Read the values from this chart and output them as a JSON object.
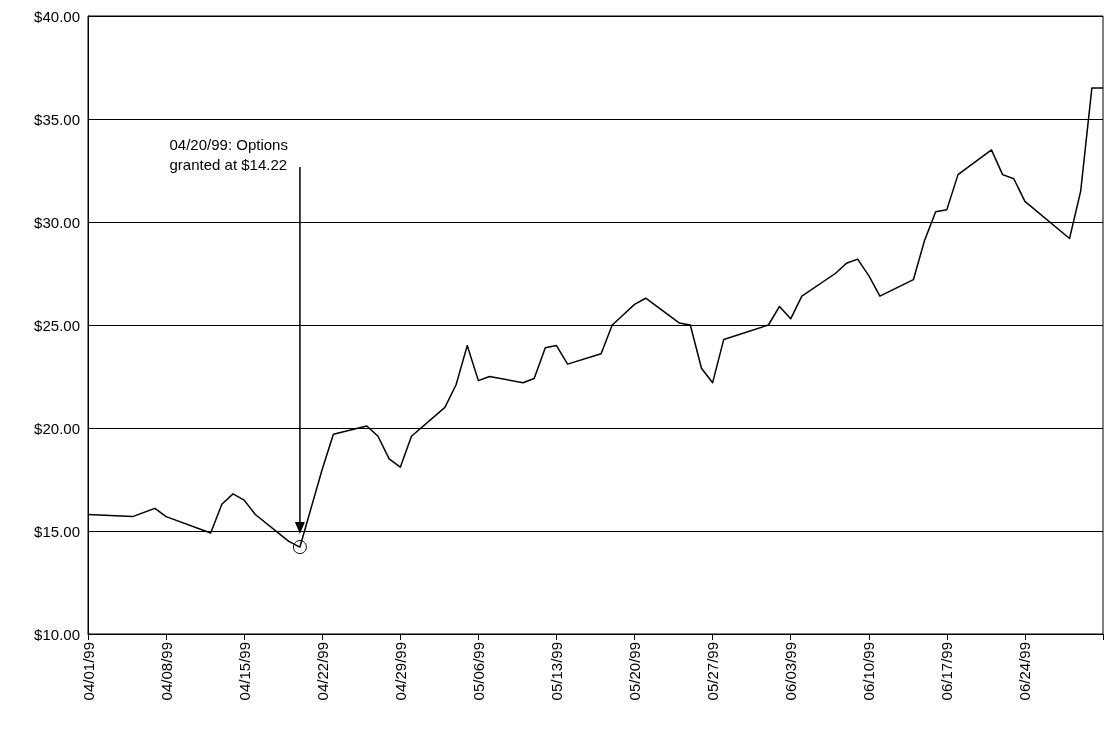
{
  "chart_data": {
    "type": "line",
    "x": [
      "1999-04-01",
      "1999-04-05",
      "1999-04-07",
      "1999-04-08",
      "1999-04-12",
      "1999-04-13",
      "1999-04-14",
      "1999-04-15",
      "1999-04-16",
      "1999-04-19",
      "1999-04-20",
      "1999-04-22",
      "1999-04-23",
      "1999-04-26",
      "1999-04-27",
      "1999-04-28",
      "1999-04-29",
      "1999-04-30",
      "1999-05-03",
      "1999-05-04",
      "1999-05-05",
      "1999-05-06",
      "1999-05-07",
      "1999-05-10",
      "1999-05-11",
      "1999-05-12",
      "1999-05-13",
      "1999-05-14",
      "1999-05-17",
      "1999-05-18",
      "1999-05-19",
      "1999-05-20",
      "1999-05-21",
      "1999-05-24",
      "1999-05-25",
      "1999-05-26",
      "1999-05-27",
      "1999-05-28",
      "1999-06-01",
      "1999-06-02",
      "1999-06-03",
      "1999-06-04",
      "1999-06-07",
      "1999-06-08",
      "1999-06-09",
      "1999-06-10",
      "1999-06-11",
      "1999-06-14",
      "1999-06-15",
      "1999-06-16",
      "1999-06-17",
      "1999-06-18",
      "1999-06-21",
      "1999-06-22",
      "1999-06-23",
      "1999-06-24",
      "1999-06-28",
      "1999-06-29",
      "1999-06-30",
      "1999-07-01"
    ],
    "values": [
      15.8,
      15.7,
      16.1,
      15.7,
      14.9,
      16.3,
      16.8,
      16.5,
      15.8,
      14.5,
      14.22,
      18.0,
      19.7,
      20.1,
      19.6,
      18.5,
      18.1,
      19.6,
      21.0,
      22.1,
      24.0,
      22.3,
      22.5,
      22.2,
      22.4,
      23.9,
      24.0,
      23.1,
      23.6,
      25.0,
      25.5,
      26.0,
      26.3,
      25.1,
      25.0,
      22.9,
      22.2,
      24.3,
      25.0,
      25.9,
      25.3,
      26.4,
      27.5,
      28.0,
      28.2,
      27.4,
      26.4,
      27.2,
      29.1,
      30.5,
      30.6,
      32.3,
      33.5,
      32.3,
      32.1,
      31.0,
      29.2,
      31.5,
      36.5,
      36.5
    ],
    "color": "#000000",
    "marker": "none",
    "line_style": "solid",
    "xlim": [
      "1999-04-01",
      "1999-07-01"
    ],
    "xticks": [
      {
        "value": "1999-04-01",
        "label": "04/01/99"
      },
      {
        "value": "1999-04-08",
        "label": "04/08/99"
      },
      {
        "value": "1999-04-15",
        "label": "04/15/99"
      },
      {
        "value": "1999-04-22",
        "label": "04/22/99"
      },
      {
        "value": "1999-04-29",
        "label": "04/29/99"
      },
      {
        "value": "1999-05-06",
        "label": "05/06/99"
      },
      {
        "value": "1999-05-13",
        "label": "05/13/99"
      },
      {
        "value": "1999-05-20",
        "label": "05/20/99"
      },
      {
        "value": "1999-05-27",
        "label": "05/27/99"
      },
      {
        "value": "1999-06-03",
        "label": "06/03/99"
      },
      {
        "value": "1999-06-10",
        "label": "06/10/99"
      },
      {
        "value": "1999-06-17",
        "label": "06/17/99"
      },
      {
        "value": "1999-06-24",
        "label": "06/24/99"
      },
      {
        "value": "1999-07-01",
        "label": null
      }
    ],
    "ylim": [
      10,
      40
    ],
    "yticks": [
      {
        "value": 10,
        "label": "$10.00"
      },
      {
        "value": 15,
        "label": "$15.00"
      },
      {
        "value": 20,
        "label": "$20.00"
      },
      {
        "value": 25,
        "label": "$25.00"
      },
      {
        "value": 30,
        "label": "$30.00"
      },
      {
        "value": 35,
        "label": "$35.00"
      },
      {
        "value": 40,
        "label": "$40.00"
      }
    ],
    "grid": "y",
    "annotations": [
      "04/20/99: Options\ngranted at $14.22"
    ]
  }
}
